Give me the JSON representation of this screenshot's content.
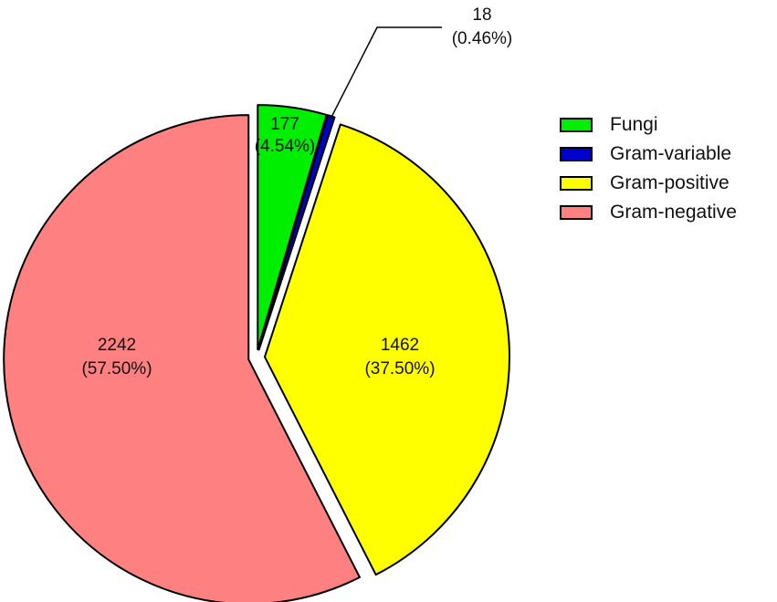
{
  "chart_data": {
    "type": "pie",
    "categories": [
      "Fungi",
      "Gram-variable",
      "Gram-positive",
      "Gram-negative"
    ],
    "values": [
      177,
      18,
      1462,
      2242
    ],
    "percent_labels": [
      "(4.54%)",
      "(0.46%)",
      "(37.50%)",
      "(57.50%)"
    ],
    "value_labels": [
      "177",
      "18",
      "1462",
      "2242"
    ],
    "colors": [
      "#00ee00",
      "#0000cc",
      "#ffff00",
      "#ff8080"
    ],
    "legend": {
      "placement": "right",
      "entries": [
        "Fungi",
        "Gram-variable",
        "Gram-positive",
        "Gram-negative"
      ]
    },
    "exploded": true,
    "start_angle": "12 o'clock",
    "direction": "clockwise"
  }
}
